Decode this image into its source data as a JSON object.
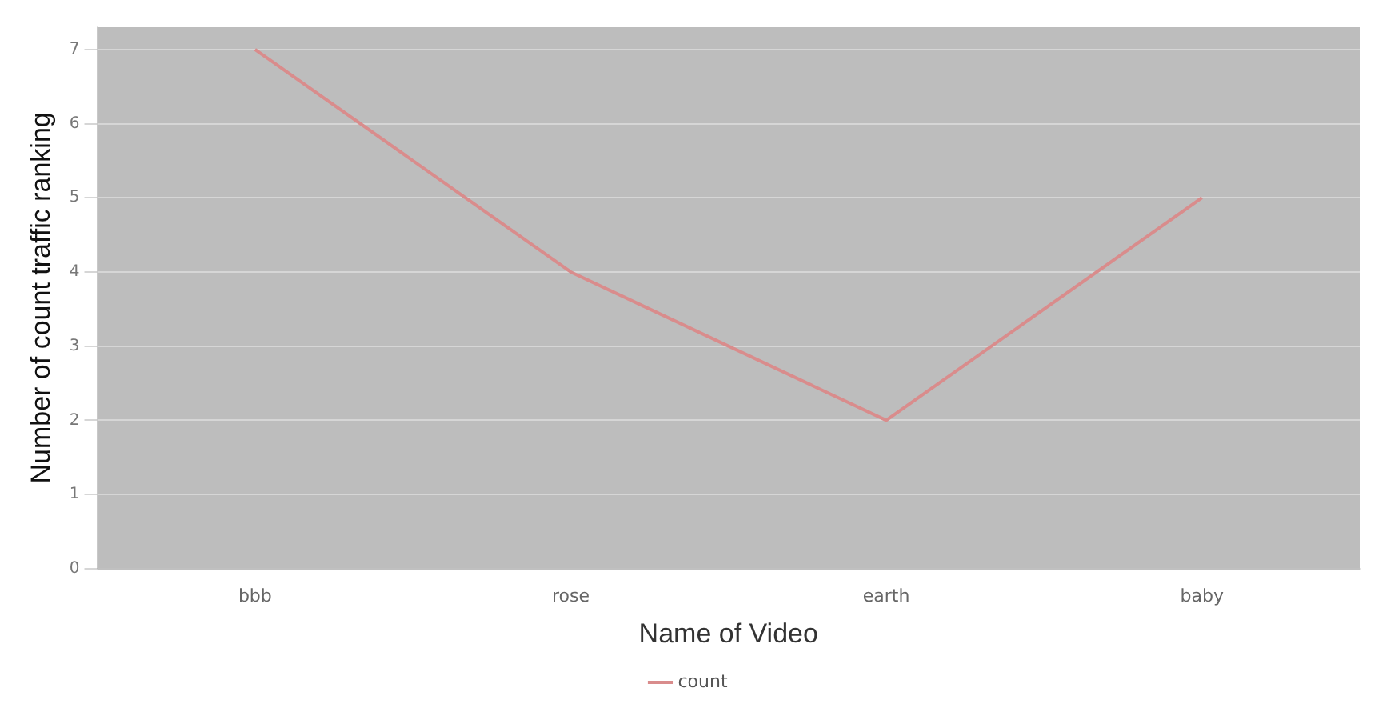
{
  "chart_data": {
    "type": "line",
    "xlabel": "Name of Video",
    "ylabel": "Number of count traffic ranking",
    "categories": [
      "bbb",
      "rose",
      "earth",
      "baby"
    ],
    "series": [
      {
        "name": "count",
        "color": "#d98c8c",
        "values": [
          7,
          4,
          2,
          5
        ]
      }
    ],
    "ylim": [
      0,
      7.3
    ],
    "yticks": [
      0,
      1,
      2,
      3,
      4,
      5,
      6,
      7
    ],
    "grid": "y",
    "legend": "bottom",
    "marker": "none",
    "line_style": "solid"
  }
}
